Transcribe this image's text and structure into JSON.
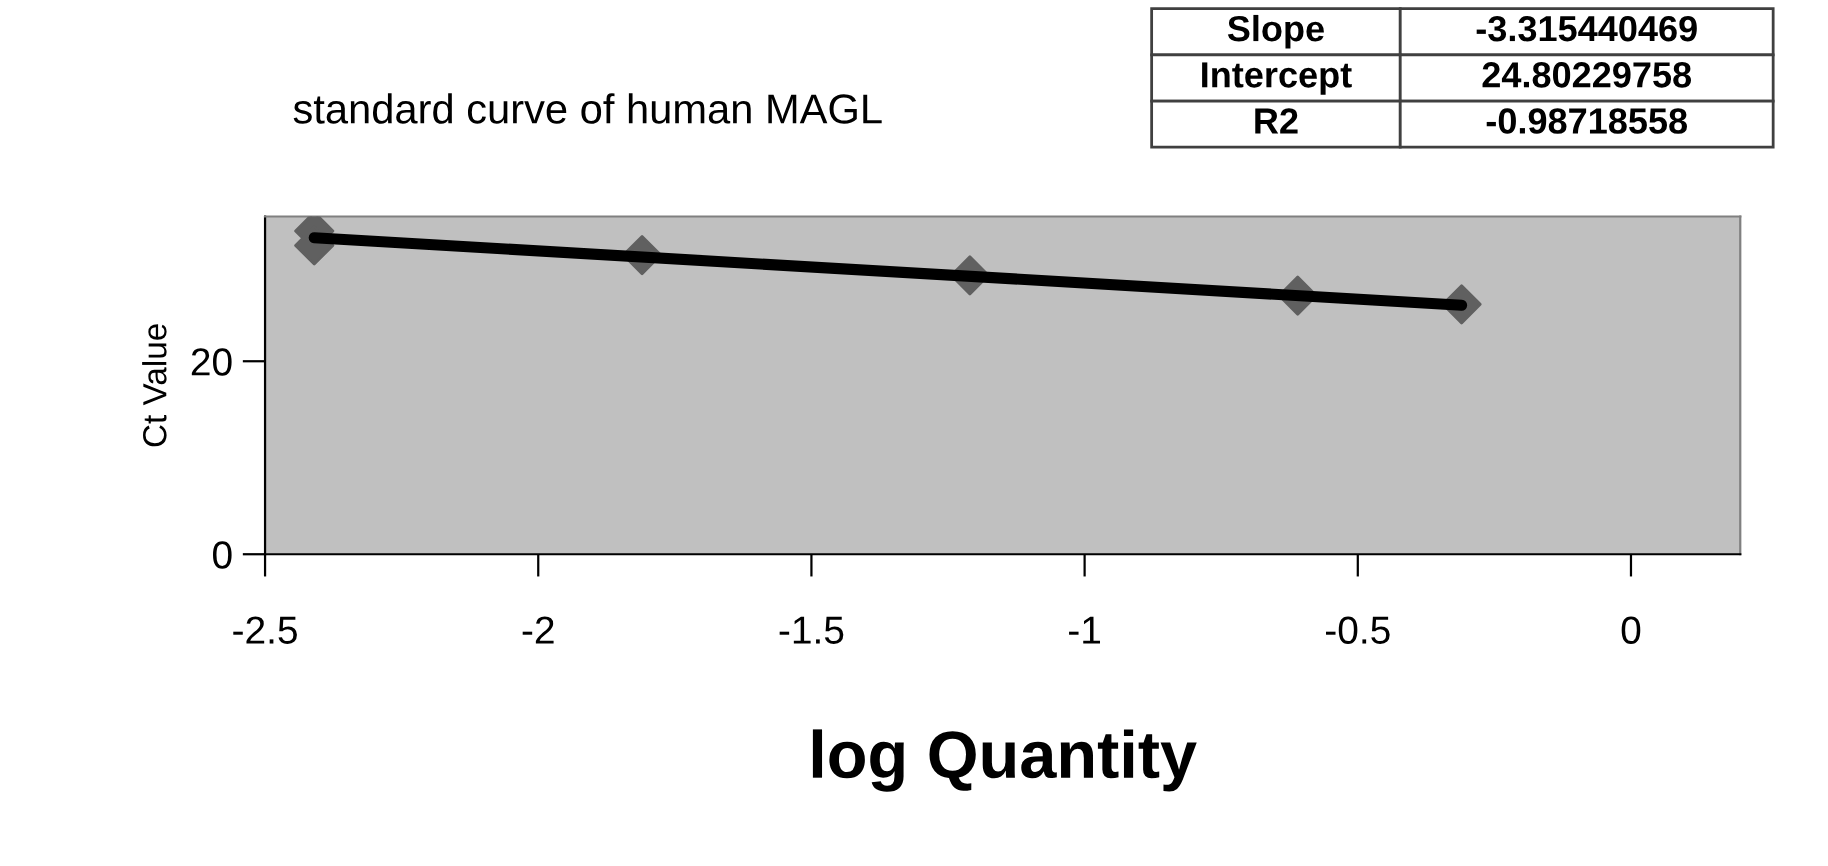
{
  "chart_data": {
    "type": "scatter",
    "title": "standard curve of human MAGL",
    "xlabel": "log Quantity",
    "ylabel": "Ct Value",
    "series": [
      {
        "color": "#606060",
        "marker": "diamond",
        "x": [
          -2.41,
          -2.41,
          -1.81,
          -1.21,
          -0.61,
          -0.31
        ],
        "values": [
          33.5,
          32.0,
          31.0,
          28.9,
          26.8,
          25.9
        ]
      },
      {
        "type": "line",
        "color": "#000000",
        "marker": "none",
        "x": [
          -2.41,
          -0.31
        ],
        "values": [
          32.8,
          25.8
        ]
      }
    ],
    "xlim": [
      -2.5,
      0.2
    ],
    "xticks": [
      -2.5,
      -2,
      -1.5,
      -1,
      -0.5,
      0
    ],
    "ylim": [
      0,
      35
    ],
    "yticks": [
      0,
      20
    ],
    "grid": false,
    "legend": false,
    "annotations": [
      "Slope",
      "-3.315440469",
      "Intercept",
      "24.80229758",
      "R2",
      "-0.98718558"
    ]
  }
}
